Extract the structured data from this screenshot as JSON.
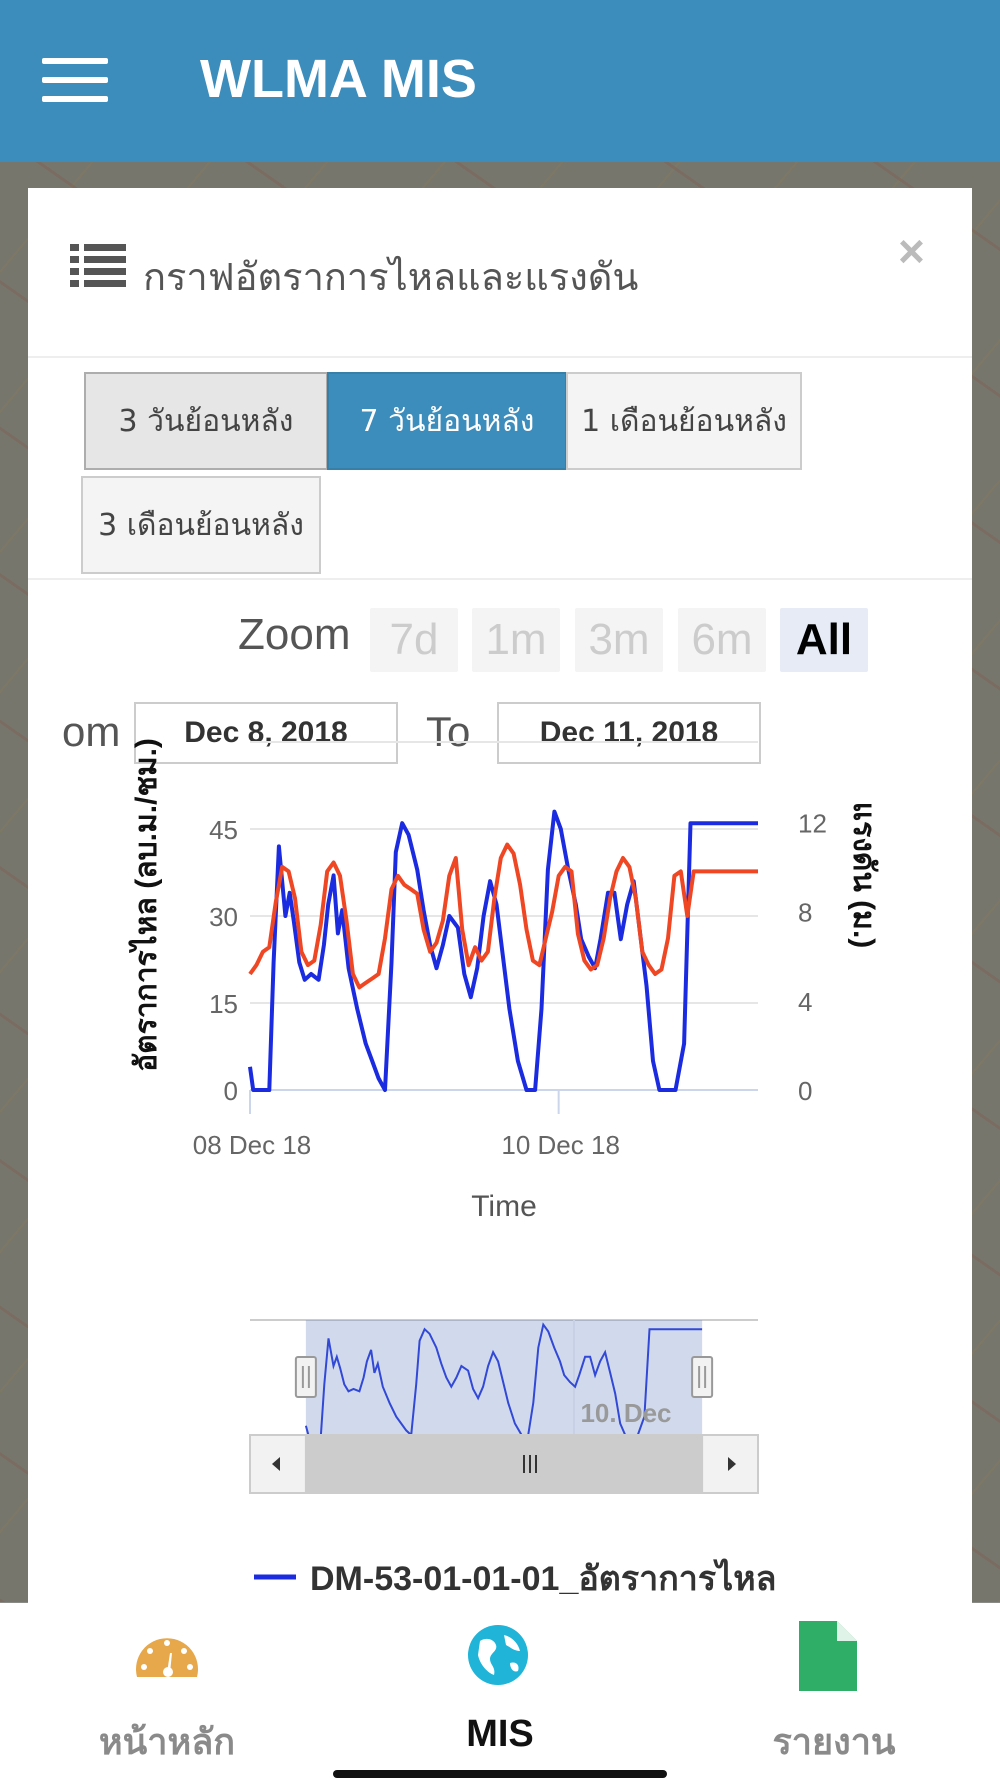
{
  "app": {
    "title": "WLMA MIS"
  },
  "modal": {
    "title": "กราฟอัตราการไหลและแรงดัน",
    "close_label": "×"
  },
  "range_buttons": [
    {
      "label": "3 วันย้อนหลัง",
      "state": "pressed"
    },
    {
      "label": "7 วันย้อนหลัง",
      "state": "active"
    },
    {
      "label": "1 เดือนย้อนหลัง",
      "state": "normal"
    },
    {
      "label": "3 เดือนย้อนหลัง",
      "state": "normal"
    }
  ],
  "zoom": {
    "label": "Zoom",
    "options": [
      "7d",
      "1m",
      "3m",
      "6m",
      "All"
    ],
    "selected": "All"
  },
  "date_range": {
    "from_label": "om",
    "from_value": "Dec 8, 2018",
    "to_label": "To",
    "to_value": "Dec 11, 2018"
  },
  "chart_data": {
    "type": "line",
    "xlabel": "Time",
    "x_ticks": [
      "08 Dec 18",
      "10 Dec 18"
    ],
    "y_left_label": "อัตราการไหล (ลบ.ม./ชม.)",
    "y_left_ticks": [
      "0",
      "15",
      "30",
      "45"
    ],
    "y_left_range": [
      0,
      50
    ],
    "y_right_label": "แรงดัน (ม.)",
    "y_right_ticks": [
      "0",
      "4",
      "8",
      "12"
    ],
    "y_right_range": [
      0,
      13
    ],
    "grid": true,
    "x_range_days": [
      "2018-12-08 00:00",
      "2018-12-11 07:00"
    ],
    "series": [
      {
        "name": "DM-53-01-01-01_อัตราการไหล",
        "color": "#1a2be0",
        "axis": "left",
        "x": [
          "12-08 00:00",
          "12-08 00:30",
          "12-08 01:00",
          "12-08 02:00",
          "12-08 03:00",
          "12-08 03:40",
          "12-08 04:30",
          "12-08 05:30",
          "12-08 06:10",
          "12-08 06:50",
          "12-08 07:40",
          "12-08 08:30",
          "12-08 09:30",
          "12-08 10:40",
          "12-08 11:30",
          "12-08 12:10",
          "12-08 13:00",
          "12-08 13:40",
          "12-08 14:20",
          "12-08 15:20",
          "12-08 16:40",
          "12-08 18:00",
          "12-08 19:00",
          "12-08 20:00",
          "12-08 21:00",
          "12-08 22:00",
          "12-08 22:40",
          "12-08 23:40",
          "12-09 00:40",
          "12-09 02:00",
          "12-09 03:00",
          "12-09 04:00",
          "12-09 05:00",
          "12-09 06:00",
          "12-09 07:00",
          "12-09 08:20",
          "12-09 09:20",
          "12-09 10:20",
          "12-09 11:20",
          "12-09 12:20",
          "12-09 13:20",
          "12-09 14:20",
          "12-09 15:00",
          "12-09 16:20",
          "12-09 17:40",
          "12-09 19:00",
          "12-09 20:20",
          "12-09 21:20",
          "12-09 22:20",
          "12-09 23:20",
          "12-10 00:20",
          "12-10 01:30",
          "12-10 02:40",
          "12-10 03:30",
          "12-10 04:40",
          "12-10 05:40",
          "12-10 06:30",
          "12-10 07:40",
          "12-10 08:40",
          "12-10 09:40",
          "12-10 10:40",
          "12-10 11:40",
          "12-10 12:40",
          "12-10 13:40",
          "12-10 14:40",
          "12-10 15:40",
          "12-10 16:50",
          "12-10 18:10",
          "12-10 19:30",
          "12-10 20:30",
          "12-10 21:40",
          "12-10 22:40",
          "12-10 23:40",
          "12-11 00:40",
          "12-11 01:40",
          "12-11 02:40",
          "12-11 03:40",
          "12-11 04:40",
          "12-11 05:40",
          "12-11 06:40",
          "12-11 07:00"
        ],
        "values": [
          4,
          0,
          0,
          0,
          0,
          22,
          42,
          30,
          34,
          29,
          22,
          19,
          20,
          19,
          25,
          32,
          37,
          27,
          31,
          21,
          14,
          8,
          5,
          2,
          0,
          22,
          41,
          46,
          44,
          38,
          31,
          25,
          21,
          25,
          30,
          28,
          20,
          16,
          21,
          30,
          36,
          32,
          26,
          14,
          5,
          0,
          0,
          14,
          38,
          48,
          45,
          38,
          32,
          26,
          23,
          21,
          26,
          34,
          34,
          26,
          32,
          36,
          27,
          18,
          5,
          0,
          0,
          0,
          8,
          46,
          46,
          46,
          46,
          46,
          46,
          46,
          46,
          46,
          46,
          46,
          46
        ],
        "note": "trace ends at right edge rising to ~45"
      },
      {
        "name": "แรงดัน",
        "color": "#ef4723",
        "axis": "right",
        "x": [
          "12-08 00:00",
          "12-08 01:00",
          "12-08 02:00",
          "12-08 03:00",
          "12-08 04:00",
          "12-08 05:00",
          "12-08 06:00",
          "12-08 07:00",
          "12-08 08:00",
          "12-08 09:00",
          "12-08 10:00",
          "12-08 11:00",
          "12-08 12:00",
          "12-08 13:00",
          "12-08 14:00",
          "12-08 15:00",
          "12-08 16:00",
          "12-08 17:00",
          "12-08 18:00",
          "12-08 19:00",
          "12-08 20:00",
          "12-08 21:00",
          "12-08 22:00",
          "12-08 23:00",
          "12-09 00:00",
          "12-09 01:00",
          "12-09 02:00",
          "12-09 03:00",
          "12-09 04:00",
          "12-09 05:00",
          "12-09 06:00",
          "12-09 07:00",
          "12-09 08:00",
          "12-09 09:00",
          "12-09 10:00",
          "12-09 11:00",
          "12-09 12:00",
          "12-09 13:00",
          "12-09 14:00",
          "12-09 15:00",
          "12-09 16:00",
          "12-09 17:00",
          "12-09 18:00",
          "12-09 19:00",
          "12-09 20:00",
          "12-09 21:00",
          "12-09 22:00",
          "12-09 23:00",
          "12-10 00:00",
          "12-10 01:00",
          "12-10 02:00",
          "12-10 03:00",
          "12-10 04:00",
          "12-10 05:00",
          "12-10 06:00",
          "12-10 07:00",
          "12-10 08:00",
          "12-10 09:00",
          "12-10 10:00",
          "12-10 11:00",
          "12-10 12:00",
          "12-10 13:00",
          "12-10 14:00",
          "12-10 15:00",
          "12-10 16:00",
          "12-10 17:00",
          "12-10 18:00",
          "12-10 19:00",
          "12-10 20:00",
          "12-10 21:00",
          "12-10 22:00",
          "12-10 23:00",
          "12-11 00:00",
          "12-11 01:00",
          "12-11 02:00",
          "12-11 03:00",
          "12-11 04:00",
          "12-11 05:00",
          "12-11 06:00",
          "12-11 07:00"
        ],
        "values": [
          5.2,
          5.6,
          6.2,
          6.4,
          8.4,
          10.0,
          9.8,
          8.6,
          6.2,
          5.6,
          5.8,
          7.4,
          9.8,
          10.2,
          9.6,
          7.6,
          5.2,
          4.6,
          4.8,
          5.0,
          5.2,
          6.8,
          9.0,
          9.6,
          9.2,
          9.0,
          8.8,
          7.2,
          6.2,
          6.6,
          7.6,
          9.6,
          10.4,
          7.2,
          5.6,
          6.4,
          5.8,
          6.2,
          8.6,
          10.4,
          11.0,
          10.6,
          9.2,
          7.2,
          5.8,
          5.6,
          6.8,
          8.0,
          9.6,
          10.0,
          9.8,
          7.0,
          5.8,
          5.4,
          5.6,
          6.8,
          8.6,
          9.8,
          10.4,
          10.0,
          8.6,
          6.2,
          5.6,
          5.2,
          5.4,
          6.8,
          9.6,
          9.8,
          7.8,
          9.8,
          9.8,
          9.8,
          9.8,
          9.8,
          9.8,
          9.8,
          9.8,
          9.8,
          9.8,
          9.8
        ]
      }
    ],
    "navigator": {
      "label": "10. Dec",
      "window_start_fraction": 0.11,
      "window_end_fraction": 0.89
    }
  },
  "legend": {
    "label": "DM-53-01-01-01_อัตราการไหล"
  },
  "bottom_nav": [
    {
      "label": "หน้าหลัก",
      "icon": "speedometer-icon",
      "color": "#e6a84a",
      "active": false
    },
    {
      "label": "MIS",
      "icon": "globe-icon",
      "color": "#1fb4d8",
      "active": true
    },
    {
      "label": "รายงาน",
      "icon": "document-icon",
      "color": "#2fae68",
      "active": false
    }
  ]
}
